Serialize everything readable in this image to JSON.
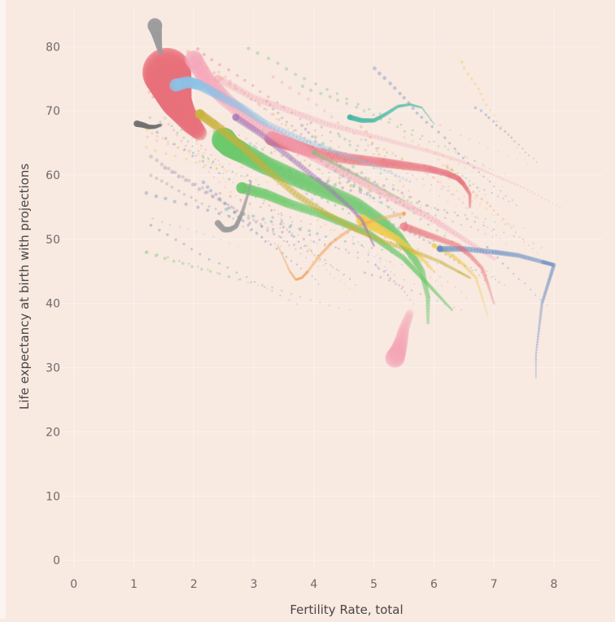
{
  "chart_data": {
    "type": "scatter",
    "title": "",
    "xlabel": "Fertility Rate, total",
    "ylabel": "Life expectancy at birth with projections",
    "xlim": [
      -0.2,
      8.8
    ],
    "ylim": [
      -1.5,
      86
    ],
    "x_ticks": [
      "0",
      "1",
      "2",
      "3",
      "4",
      "5",
      "6",
      "7",
      "8"
    ],
    "y_ticks": [
      "0",
      "10",
      "20",
      "30",
      "40",
      "50",
      "60",
      "70",
      "80"
    ],
    "grid": true,
    "legend": "none",
    "background": "#f8e9e1",
    "colors": {
      "green": "#6cc96c",
      "red": "#e8707a",
      "pink": "#f4a6b8",
      "yellow": "#f1cc4f",
      "orange": "#f0a45a",
      "teal": "#3fb5a3",
      "blue": "#5b87c0",
      "lightblue": "#8dc3e6",
      "purple": "#a77ab8",
      "gray": "#9d9d9d",
      "darkgray": "#707070",
      "olive": "#c7b13a"
    },
    "series": [
      {
        "color": "green",
        "size_start": 4,
        "size_end": 30,
        "opacity": 0.7,
        "x": [
          5.9,
          5.9,
          5.8,
          5.6,
          5.4,
          5.1,
          4.7,
          4.2,
          3.7,
          3.2,
          2.8,
          2.6,
          2.5
        ],
        "y": [
          37,
          41,
          45,
          48,
          50.5,
          53,
          55.5,
          57.5,
          59.5,
          61.5,
          63.5,
          64.5,
          65.5
        ]
      },
      {
        "color": "green",
        "size_start": 3,
        "size_end": 14,
        "opacity": 0.75,
        "x": [
          6.3,
          6.1,
          5.9,
          5.7,
          5.5,
          5.2,
          4.9,
          4.5,
          4.1,
          3.6,
          3.2,
          2.8
        ],
        "y": [
          39,
          41,
          43,
          45,
          47,
          49,
          51,
          52.5,
          54,
          55.5,
          57,
          58
        ]
      },
      {
        "color": "red",
        "size_start": 3,
        "size_end": 18,
        "opacity": 0.65,
        "x": [
          6.6,
          6.6,
          6.5,
          6.4,
          6.2,
          5.9,
          5.5,
          5.1,
          4.6,
          4.0,
          3.6,
          3.3
        ],
        "y": [
          55,
          57,
          58.5,
          59.5,
          60.3,
          61,
          61.5,
          62,
          62.5,
          63.5,
          64.8,
          65.7
        ]
      },
      {
        "color": "red",
        "size_start": 18,
        "size_end": 60,
        "opacity": 0.55,
        "x": [
          2.1,
          1.95,
          1.8,
          1.7,
          1.65,
          1.6,
          1.55
        ],
        "y": [
          66.5,
          68,
          70,
          71.5,
          73,
          74.5,
          76
        ]
      },
      {
        "color": "pink",
        "size_start": 5,
        "size_end": 22,
        "opacity": 0.55,
        "x": [
          7.0,
          6.5,
          6.0,
          5.4,
          4.8,
          4.2,
          3.6,
          3.0,
          2.5,
          2.2,
          2.0
        ],
        "y": [
          47,
          50,
          53,
          56,
          59,
          62,
          65,
          68,
          72,
          75,
          78
        ]
      },
      {
        "color": "pink",
        "size_start": 2,
        "size_end": 10,
        "opacity": 0.45,
        "x": [
          8.1,
          7.5,
          7.0,
          6.5,
          6.0,
          5.4,
          4.8,
          4.2,
          3.6,
          3.0,
          2.4
        ],
        "y": [
          55,
          58,
          60,
          62,
          63.5,
          65,
          66.5,
          68,
          70,
          72,
          75
        ]
      },
      {
        "color": "yellow",
        "size_start": 3,
        "size_end": 14,
        "opacity": 0.65,
        "x": [
          6.0,
          5.8,
          5.6,
          5.4,
          5.2,
          5.0,
          4.8
        ],
        "y": [
          45,
          47,
          48.5,
          50,
          51,
          52,
          53
        ]
      },
      {
        "color": "yellow",
        "size_start": 2,
        "size_end": 6,
        "opacity": 0.6,
        "x": [
          6.9,
          6.8,
          6.7,
          6.5,
          6.3,
          6.0
        ],
        "y": [
          38,
          41,
          44,
          46,
          47.5,
          49
        ]
      },
      {
        "color": "orange",
        "size_start": 2,
        "size_end": 5,
        "opacity": 0.75,
        "x": [
          3.4,
          3.5,
          3.6,
          3.7,
          3.8,
          3.9,
          4.1,
          4.3,
          4.6,
          5.0,
          5.5
        ],
        "y": [
          49,
          47,
          45,
          43.7,
          44,
          45,
          47.5,
          49.5,
          51.5,
          53,
          54
        ]
      },
      {
        "color": "teal",
        "size_start": 2,
        "size_end": 7,
        "opacity": 0.75,
        "x": [
          6.0,
          5.8,
          5.6,
          5.4,
          5.2,
          5.0,
          4.8,
          4.6
        ],
        "y": [
          68,
          70.5,
          71,
          70.7,
          69.5,
          68.5,
          68.5,
          69
        ]
      },
      {
        "color": "blue",
        "size_start": 2,
        "size_end": 8,
        "opacity": 0.7,
        "x": [
          7.7,
          7.7,
          7.75,
          7.8,
          7.9,
          8.0,
          7.8,
          7.4,
          7.0,
          6.5,
          6.1
        ],
        "y": [
          28.5,
          32,
          36,
          40,
          43,
          46,
          46.5,
          47.5,
          48,
          48.5,
          48.5
        ]
      },
      {
        "color": "lightblue",
        "size_start": 3,
        "size_end": 16,
        "opacity": 0.6,
        "x": [
          5.6,
          5.0,
          4.4,
          3.8,
          3.2,
          2.8,
          2.4,
          2.1,
          1.9,
          1.7
        ],
        "y": [
          59,
          61.5,
          63.5,
          65.5,
          68,
          70.5,
          72.5,
          74,
          74.5,
          74
        ]
      },
      {
        "color": "purple",
        "size_start": 3,
        "size_end": 9,
        "opacity": 0.7,
        "x": [
          5.0,
          4.9,
          4.8,
          4.6,
          4.3,
          3.9,
          3.5,
          3.1,
          2.7
        ],
        "y": [
          49,
          51,
          53,
          55,
          57.5,
          60.5,
          63.5,
          66.5,
          69
        ]
      },
      {
        "color": "gray",
        "size_start": 3,
        "size_end": 8,
        "opacity": 0.7,
        "x": [
          2.95,
          2.9,
          2.85,
          2.8,
          2.75,
          2.7,
          2.6,
          2.5,
          2.4
        ],
        "y": [
          59,
          57,
          55.5,
          54,
          53,
          52,
          51.5,
          51.5,
          52.5
        ]
      },
      {
        "color": "gray",
        "size_start": 5,
        "size_end": 18,
        "opacity": 0.7,
        "x": [
          1.45,
          1.42,
          1.4,
          1.38,
          1.36,
          1.35
        ],
        "y": [
          79,
          80,
          81,
          82,
          82.8,
          83.3
        ]
      },
      {
        "color": "darkgray",
        "size_start": 4,
        "size_end": 8,
        "opacity": 0.75,
        "x": [
          1.45,
          1.35,
          1.25,
          1.15,
          1.05
        ],
        "y": [
          67.8,
          67.5,
          67.5,
          67.8,
          68
        ]
      },
      {
        "color": "olive",
        "size_start": 3,
        "size_end": 12,
        "opacity": 0.75,
        "x": [
          6.6,
          6.4,
          6.1,
          5.7,
          5.2,
          4.7,
          4.2,
          3.7,
          3.2,
          2.8,
          2.4,
          2.1
        ],
        "y": [
          44,
          45,
          46.5,
          48,
          49.5,
          51.5,
          54,
          57,
          61,
          64.5,
          67.5,
          69.5
        ]
      },
      {
        "color": "pink",
        "size_start": 10,
        "size_end": 24,
        "opacity": 0.35,
        "x": [
          5.6,
          5.5,
          5.45,
          5.4,
          5.35
        ],
        "y": [
          38.5,
          36,
          34,
          32.5,
          31.5
        ]
      },
      {
        "color": "red",
        "size_start": 3,
        "size_end": 10,
        "opacity": 0.5,
        "x": [
          7.0,
          6.9,
          6.8,
          6.6,
          6.4,
          6.1,
          5.8,
          5.5
        ],
        "y": [
          40,
          43,
          45.5,
          47.5,
          49,
          50,
          51,
          52
        ]
      },
      {
        "color": "green",
        "size_start": 2,
        "size_end": 5,
        "opacity": 0.6,
        "x": [
          5.5,
          5.2,
          4.9,
          4.6,
          4.3,
          4.0
        ],
        "y": [
          56,
          57.5,
          59,
          60.5,
          62,
          63.5
        ]
      }
    ],
    "haze_colors": [
      "pink",
      "lightblue",
      "green",
      "yellow",
      "purple",
      "red",
      "orange",
      "teal",
      "blue",
      "gray"
    ]
  }
}
